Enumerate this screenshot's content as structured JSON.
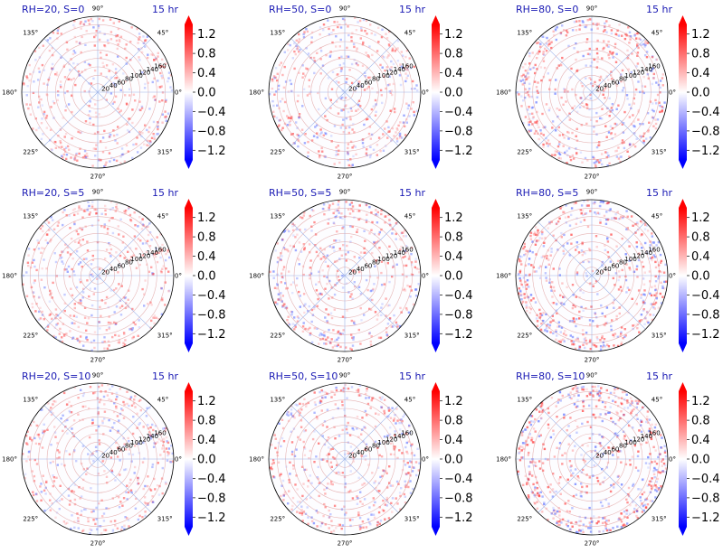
{
  "colors": {
    "title": "#1a1ab4",
    "cmap_low": "#0000ff",
    "cmap_mid": "#ffffff",
    "cmap_high": "#ff0000",
    "grid": "#b0b0b0",
    "spoke": "#9db4e8",
    "frame": "#000000"
  },
  "chart_data": [
    {
      "type": "heatmap",
      "projection": "polar",
      "title": "RH=20, S=0",
      "time_label": "15 hr",
      "rh": 20,
      "s": 0,
      "intensity": 0.35
    },
    {
      "type": "heatmap",
      "projection": "polar",
      "title": "RH=50, S=0",
      "time_label": "15 hr",
      "rh": 50,
      "s": 0,
      "intensity": 0.4
    },
    {
      "type": "heatmap",
      "projection": "polar",
      "title": "RH=80, S=0",
      "time_label": "15 hr",
      "rh": 80,
      "s": 0,
      "intensity": 0.55
    },
    {
      "type": "heatmap",
      "projection": "polar",
      "title": "RH=20, S=5",
      "time_label": "15 hr",
      "rh": 20,
      "s": 5,
      "intensity": 0.35
    },
    {
      "type": "heatmap",
      "projection": "polar",
      "title": "RH=50, S=5",
      "time_label": "15 hr",
      "rh": 50,
      "s": 5,
      "intensity": 0.45
    },
    {
      "type": "heatmap",
      "projection": "polar",
      "title": "RH=80, S=5",
      "time_label": "15 hr",
      "rh": 80,
      "s": 5,
      "intensity": 0.65
    },
    {
      "type": "heatmap",
      "projection": "polar",
      "title": "RH=20, S=10",
      "time_label": "15 hr",
      "rh": 20,
      "s": 10,
      "intensity": 0.35
    },
    {
      "type": "heatmap",
      "projection": "polar",
      "title": "RH=50, S=10",
      "time_label": "15 hr",
      "rh": 50,
      "s": 10,
      "intensity": 0.45
    },
    {
      "type": "heatmap",
      "projection": "polar",
      "title": "RH=80, S=10",
      "time_label": "15 hr",
      "rh": 80,
      "s": 10,
      "intensity": 0.7
    }
  ],
  "shared_axes": {
    "angle_ticks": [
      "0°",
      "45°",
      "90°",
      "135°",
      "180°",
      "225°",
      "270°",
      "315°"
    ],
    "angle_values": [
      0,
      45,
      90,
      135,
      180,
      225,
      270,
      315
    ],
    "radial_ticks": [
      20,
      40,
      60,
      80,
      100,
      120,
      140,
      160
    ],
    "radial_tick_labels": [
      "20",
      "40",
      "60",
      "80",
      "100",
      "120",
      "140",
      "160"
    ],
    "rlim": [
      0,
      180
    ]
  },
  "colorbar": {
    "ticks": [
      1.2,
      0.8,
      0.4,
      0.0,
      -0.4,
      -0.8,
      -1.2
    ],
    "tick_labels": [
      "1.2",
      "0.8",
      "0.4",
      "0.0",
      "−0.4",
      "−0.8",
      "−1.2"
    ],
    "range": [
      -1.4,
      1.4
    ],
    "extend": "both"
  }
}
